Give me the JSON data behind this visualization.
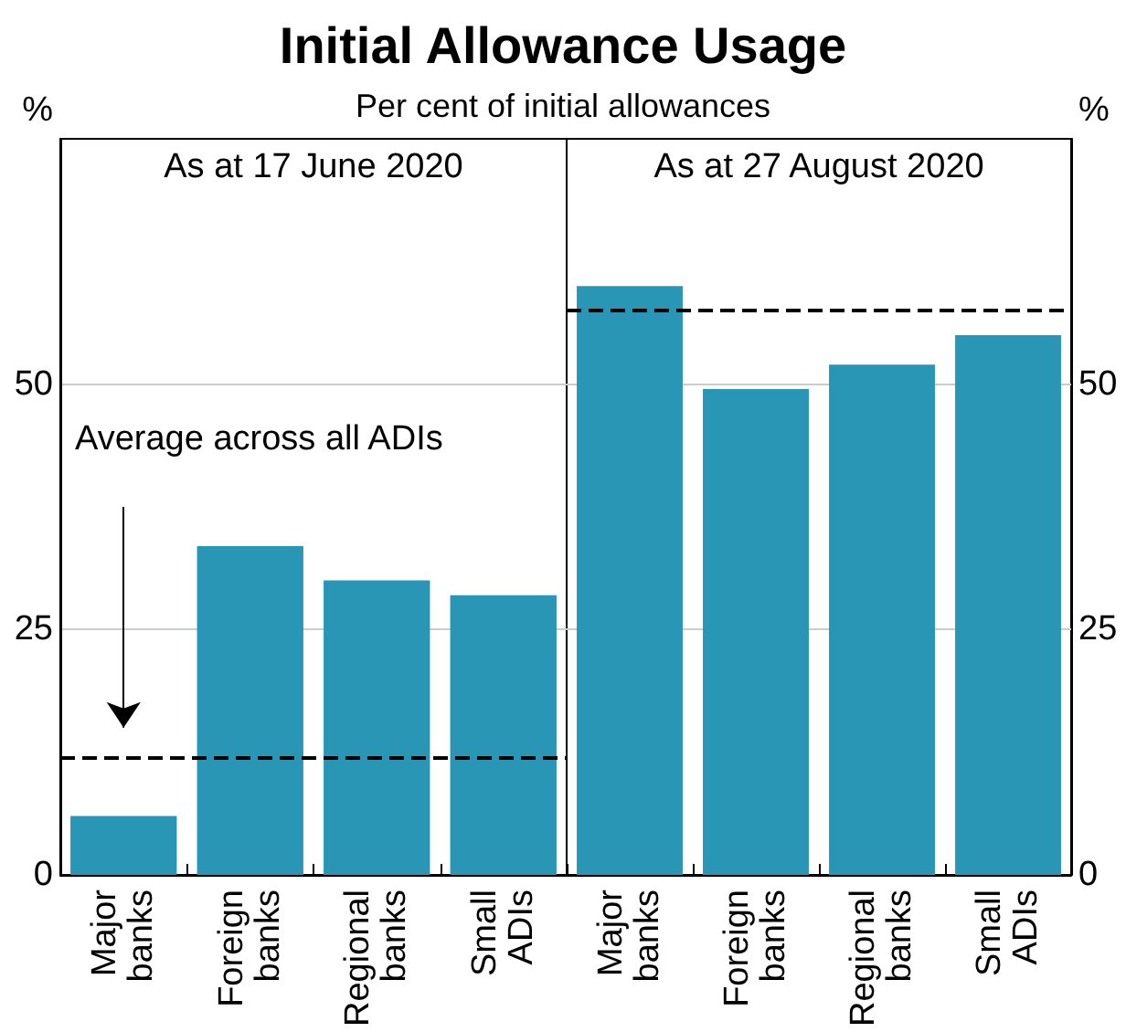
{
  "chart_data": [
    {
      "type": "bar",
      "title": "Initial Allowance Usage",
      "subtitle": "Per cent of initial allowances",
      "ylabel": "%",
      "annotations": [
        "As at 17 June 2020"
      ],
      "categories": [
        "Major banks",
        "Foreign banks",
        "Regional banks",
        "Small ADIs"
      ],
      "values": [
        6,
        33.5,
        30,
        28.5
      ],
      "color": "#2996b6",
      "ylim": [
        0,
        75
      ],
      "yticks": [
        0,
        25,
        50
      ],
      "grid": "y",
      "ref_lines": [
        {
          "axis": "y",
          "value": 12,
          "label": "Average across all ADIs",
          "color": "#000000",
          "line_style": "dashed"
        }
      ]
    },
    {
      "type": "bar",
      "ylabel": "%",
      "annotations": [
        "As at 27 August 2020"
      ],
      "categories": [
        "Major banks",
        "Foreign banks",
        "Regional banks",
        "Small ADIs"
      ],
      "values": [
        60,
        49.5,
        52,
        55
      ],
      "color": "#2996b6",
      "ylim": [
        0,
        75
      ],
      "yticks": [
        0,
        25,
        50
      ],
      "grid": "y",
      "ref_lines": [
        {
          "axis": "y",
          "value": 57.5,
          "color": "#000000",
          "line_style": "dashed"
        }
      ]
    }
  ]
}
